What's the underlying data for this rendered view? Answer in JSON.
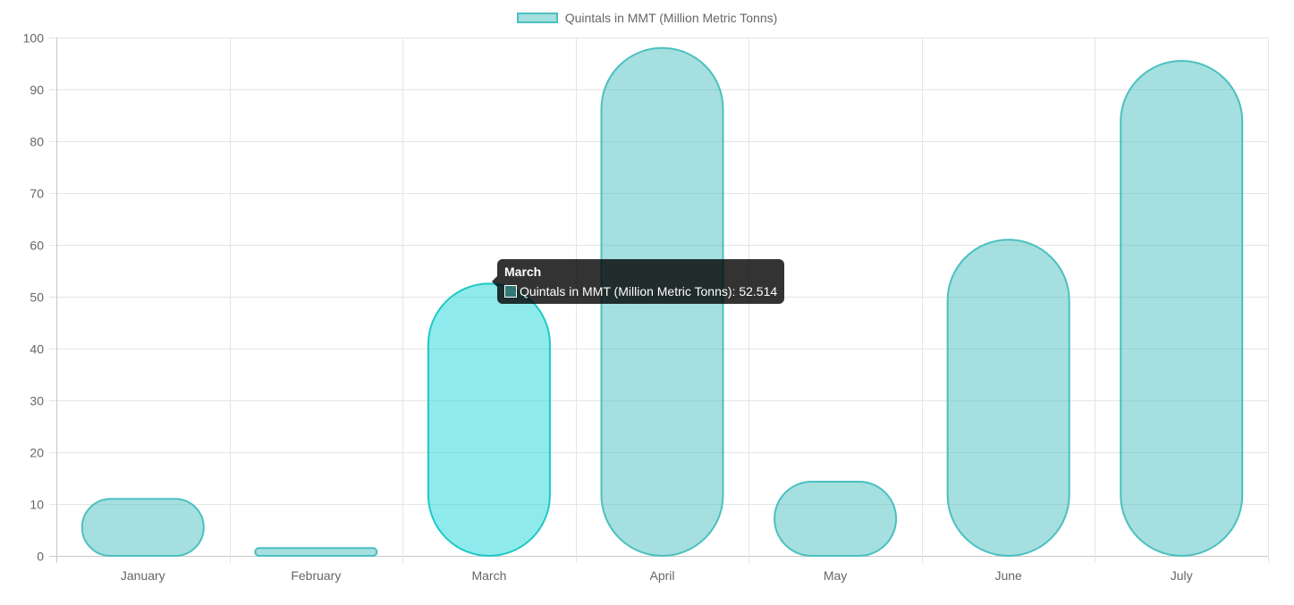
{
  "chart_data": {
    "type": "bar",
    "categories": [
      "January",
      "February",
      "March",
      "April",
      "May",
      "June",
      "July"
    ],
    "series": [
      {
        "name": "Quintals in MMT (Million Metric Tonns)",
        "values": [
          11,
          1.5,
          52.514,
          98,
          14.3,
          61,
          95.5
        ]
      }
    ],
    "ylim": [
      0,
      100
    ],
    "yticks": [
      0,
      10,
      20,
      30,
      40,
      50,
      60,
      70,
      80,
      90,
      100
    ],
    "grid": true,
    "legend_position": "top-center",
    "bar_style": "rounded-pill",
    "colors": {
      "bar_fill": "#4bc0c0",
      "bar_fill_alpha": 0.5,
      "bar_border": "#4bc0c0",
      "hover_fill": "#1fd8d8",
      "hover_border": "#1ec8c8",
      "grid": "#e5e5e5",
      "axis": "#c8c8c8",
      "tick_text": "#666666"
    },
    "active_index": 2
  },
  "legend": {
    "label": "Quintals in MMT (Million Metric Tonns)"
  },
  "tooltip": {
    "title": "March",
    "text": "Quintals in MMT (Million Metric Tonns): 52.514"
  }
}
